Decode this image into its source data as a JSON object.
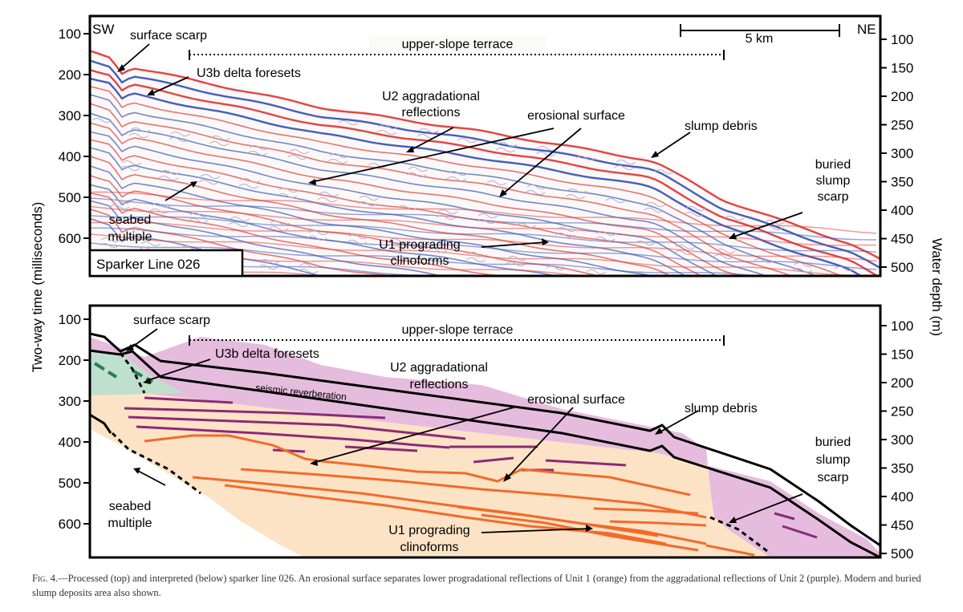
{
  "y_axis_left": {
    "label": "Two-way time (milliseconds)",
    "top_ticks": [
      "100",
      "200",
      "300",
      "400",
      "500",
      "600"
    ],
    "bottom_ticks": [
      "100",
      "200",
      "300",
      "400",
      "500",
      "600"
    ]
  },
  "y_axis_right": {
    "label": "Water depth (m)",
    "top_ticks": [
      "100",
      "150",
      "200",
      "250",
      "300",
      "350",
      "400",
      "450",
      "500"
    ],
    "bottom_ticks": [
      "100",
      "150",
      "200",
      "250",
      "300",
      "350",
      "400",
      "450",
      "500"
    ]
  },
  "top_panel": {
    "sw_label": "SW",
    "ne_label": "NE",
    "scale_label": "5 km",
    "line_label": "Sparker Line 026",
    "annotations": {
      "surface_scarp": "surface scarp",
      "u3b": "U3b delta foresets",
      "terrace": "upper-slope terrace",
      "u2_line1": "U2 aggradational",
      "u2_line2": "reflections",
      "erosional": "erosional surface",
      "slump_debris": "slump debris",
      "buried1": "buried",
      "buried2": "slump",
      "buried3": "scarp",
      "seabed1": "seabed",
      "seabed2": "multiple",
      "u1_line1": "U1 prograding",
      "u1_line2": "clinoforms"
    }
  },
  "bottom_panel": {
    "annotations": {
      "surface_scarp": "surface scarp",
      "u3b": "U3b delta foresets",
      "terrace": "upper-slope terrace",
      "u2_line1": "U2 aggradational",
      "u2_line2": "reflections",
      "erosional": "erosional surface",
      "reverberation": "seismic reverberation",
      "slump_debris": "slump debris",
      "buried1": "buried",
      "buried2": "slump",
      "buried3": "scarp",
      "seabed1": "seabed",
      "seabed2": "multiple",
      "u1_line1": "U1 prograding",
      "u1_line2": "clinoforms"
    }
  },
  "colors": {
    "unit1_fill": "#fde3c6",
    "unit1_line": "#f26b2a",
    "unit2_fill": "#e6bcde",
    "unit2_line": "#8b2a78",
    "unit3_fill": "#bfe0cf",
    "unit3_line": "#2e7d4f",
    "reflection_red": "#e03a3a",
    "reflection_blue": "#3a55b8"
  },
  "caption": {
    "fig_label": "Fig. 4.",
    "text": "—Processed (top) and interpreted (below) sparker line 026. An erosional surface separates lower progradational reflections of Unit 1 (orange) from the aggradational reflections of Unit 2 (purple). Modern and buried slump deposits area also shown."
  }
}
